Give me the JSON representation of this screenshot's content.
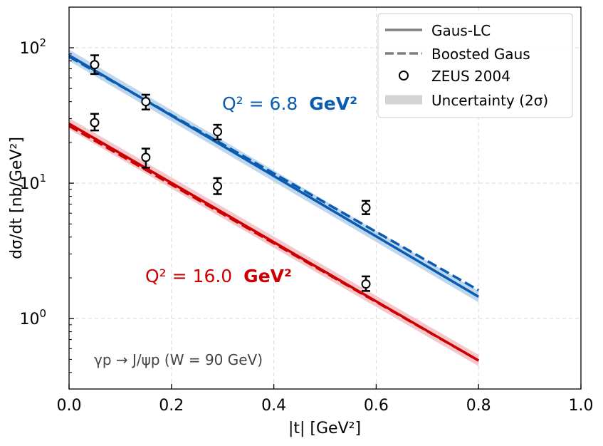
{
  "chart_data": {
    "type": "line",
    "xlabel": "|t| [GeV²]",
    "ylabel": "dσ/dt [nb/GeV²]",
    "xlim": [
      0.0,
      1.0
    ],
    "ylim_log10": [
      -0.52,
      2.3
    ],
    "y_scale": "log",
    "x_ticks": [
      {
        "value": 0.0,
        "label": "0.0"
      },
      {
        "value": 0.2,
        "label": "0.2"
      },
      {
        "value": 0.4,
        "label": "0.4"
      },
      {
        "value": 0.6,
        "label": "0.6"
      },
      {
        "value": 0.8,
        "label": "0.8"
      },
      {
        "value": 1.0,
        "label": "1.0"
      }
    ],
    "y_ticks": [
      {
        "value": 1,
        "base": "10",
        "exp": "0"
      },
      {
        "value": 10,
        "base": "10",
        "exp": "1"
      },
      {
        "value": 100,
        "base": "10",
        "exp": "2"
      }
    ],
    "grid": true,
    "legend": {
      "position": "top-right",
      "entries": [
        {
          "label": "Gaus-LC",
          "style": "solid"
        },
        {
          "label": "Boosted Gaus",
          "style": "dashed"
        },
        {
          "label": "ZEUS 2004",
          "style": "marker"
        },
        {
          "label": "Uncertainty (2σ)",
          "style": "band"
        }
      ]
    },
    "process_label": "γp → J/ψp (W = 90 GeV)",
    "series": [
      {
        "name": "Q² = 6.8 GeV²",
        "label_prefix": "Q² = 6.8",
        "label_unit": "GeV²",
        "color": "#0a5cb0",
        "band_color": "#a9c8ea",
        "gaus_lc": {
          "x": [
            0.0,
            0.8
          ],
          "y": [
            88,
            1.45
          ]
        },
        "boosted": {
          "x": [
            0.0,
            0.8
          ],
          "y": [
            86,
            1.62
          ]
        },
        "band_rel": 0.1,
        "data": [
          {
            "t": 0.05,
            "y": 75,
            "lo": 64,
            "hi": 88
          },
          {
            "t": 0.15,
            "y": 40,
            "lo": 35,
            "hi": 45
          },
          {
            "t": 0.29,
            "y": 24,
            "lo": 21,
            "hi": 27
          },
          {
            "t": 0.58,
            "y": 6.6,
            "lo": 5.9,
            "hi": 7.4
          }
        ]
      },
      {
        "name": "Q² = 16.0 GeV²",
        "label_prefix": "Q² = 16.0",
        "label_unit": "GeV²",
        "color": "#cc0000",
        "band_color": "#f2b3b8",
        "gaus_lc": {
          "x": [
            0.0,
            0.8
          ],
          "y": [
            27.5,
            0.49
          ]
        },
        "boosted": {
          "x": [
            0.0,
            0.8
          ],
          "y": [
            26.5,
            0.49
          ]
        },
        "band_rel": 0.1,
        "data": [
          {
            "t": 0.05,
            "y": 28,
            "lo": 24.5,
            "hi": 32.5
          },
          {
            "t": 0.15,
            "y": 15.5,
            "lo": 13,
            "hi": 18
          },
          {
            "t": 0.29,
            "y": 9.5,
            "lo": 8.3,
            "hi": 10.9
          },
          {
            "t": 0.58,
            "y": 1.8,
            "lo": 1.6,
            "hi": 2.05
          }
        ]
      }
    ]
  }
}
